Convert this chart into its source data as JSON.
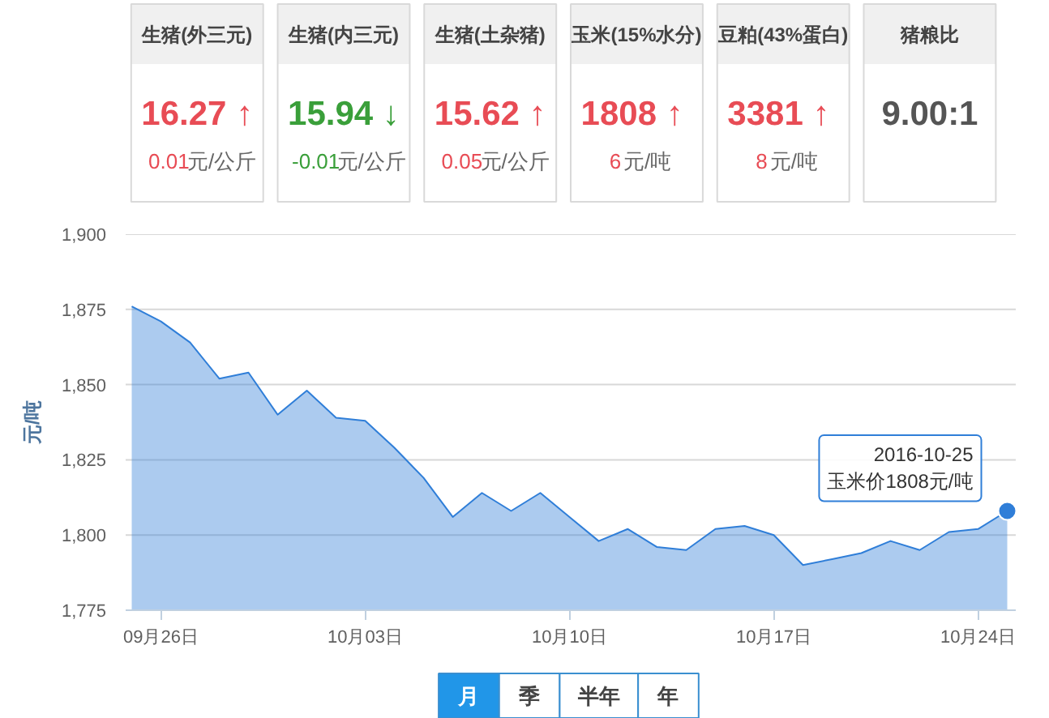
{
  "chart_data": [
    {
      "type": "other",
      "categories": [
        "生猪(外三元)",
        "生猪(内三元)",
        "生猪(土杂猪)",
        "玉米(15%水分)",
        "豆粕(43%蛋白)",
        "猪粮比"
      ],
      "annotations": [
        "16.27 ↑",
        "15.94 ↓",
        "15.62 ↑",
        "1808  ↑",
        "3381  ↑",
        "9.00:1"
      ],
      "values": [
        0.01,
        -0.01,
        0.05,
        6,
        8,
        null
      ],
      "value_labels": [
        "0.01元/公斤",
        "-0.01元/公斤",
        "0.05元/公斤",
        "6元/吨",
        "8元/吨",
        null
      ]
    },
    {
      "type": "area",
      "ylabel": "元/吨",
      "x": [
        "2016-09-25",
        "2016-09-26",
        "2016-09-27",
        "2016-09-28",
        "2016-09-29",
        "2016-09-30",
        "2016-10-01",
        "2016-10-02",
        "2016-10-03",
        "2016-10-04",
        "2016-10-05",
        "2016-10-06",
        "2016-10-07",
        "2016-10-08",
        "2016-10-09",
        "2016-10-10",
        "2016-10-11",
        "2016-10-12",
        "2016-10-13",
        "2016-10-14",
        "2016-10-15",
        "2016-10-16",
        "2016-10-17",
        "2016-10-18",
        "2016-10-19",
        "2016-10-20",
        "2016-10-21",
        "2016-10-22",
        "2016-10-23",
        "2016-10-24",
        "2016-10-25"
      ],
      "series": [
        {
          "color": "#2f7ed8",
          "values": [
            1876,
            1871,
            1864,
            1852,
            1854,
            1840,
            1848,
            1839,
            1838,
            1829,
            1819,
            1806,
            1814,
            1808,
            1814,
            1806,
            1798,
            1802,
            1796,
            1795,
            1802,
            1803,
            1800,
            1790,
            1792,
            1794,
            1798,
            1795,
            1801,
            1802,
            1808
          ]
        }
      ],
      "xlim": [
        "2016-09-24T19:00",
        "2016-10-25T07:00"
      ],
      "xticks": [
        {
          "value": "2016-09-26",
          "label": "09月26日"
        },
        {
          "value": "2016-10-03",
          "label": "10月03日"
        },
        {
          "value": "2016-10-10",
          "label": "10月10日"
        },
        {
          "value": "2016-10-17",
          "label": "10月17日"
        },
        {
          "value": "2016-10-24",
          "label": "10月24日"
        }
      ],
      "ylim": [
        1775,
        1900
      ],
      "yticks": [
        {
          "value": 1775,
          "label": "1,775"
        },
        {
          "value": 1800,
          "label": "1,800"
        },
        {
          "value": 1825,
          "label": "1,825"
        },
        {
          "value": 1850,
          "label": "1,850"
        },
        {
          "value": 1875,
          "label": "1,875"
        },
        {
          "value": 1900,
          "label": "1,900"
        }
      ],
      "grid": "y",
      "annotations": [
        {
          "text": "2016-10-25\n玉米价1808元/吨",
          "x": "2016-10-25",
          "y": 1808
        }
      ]
    },
    {
      "type": "other",
      "categories": [
        "月",
        "季",
        "半年",
        "年"
      ],
      "colors": [
        "#2196e8",
        "#ffffff",
        "#ffffff",
        "#ffffff"
      ]
    }
  ]
}
